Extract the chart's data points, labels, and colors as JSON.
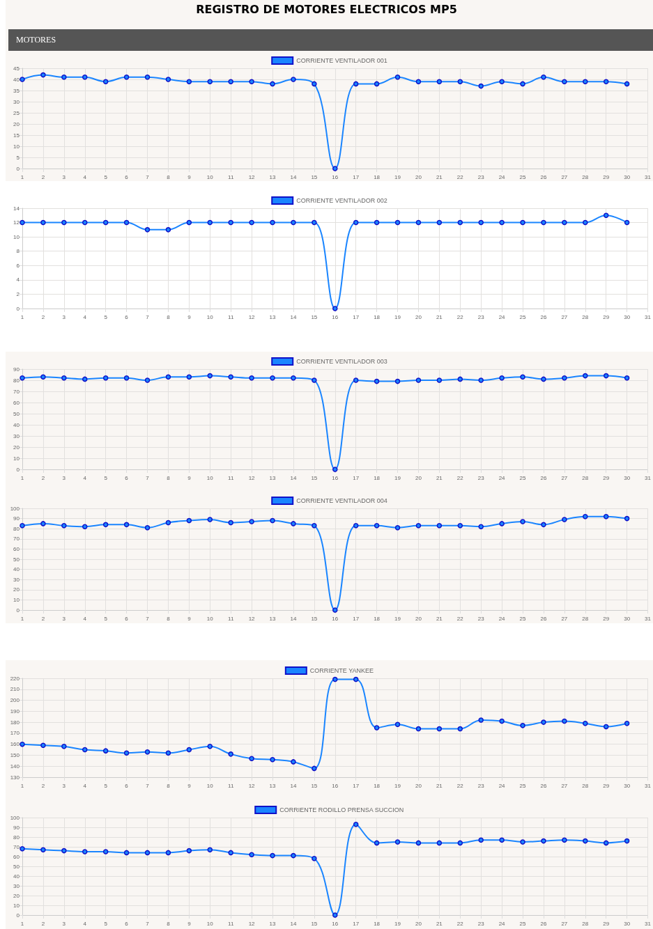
{
  "chart_data": [
    {
      "type": "line",
      "title": "REGISTRO DE MOTORES ELECTRICOS MP5",
      "subtitle": "MOTORES",
      "x": [
        1,
        2,
        3,
        4,
        5,
        6,
        7,
        8,
        9,
        10,
        11,
        12,
        13,
        14,
        15,
        16,
        17,
        18,
        19,
        20,
        21,
        22,
        23,
        24,
        25,
        26,
        27,
        28,
        29,
        30
      ],
      "xlim": [
        1,
        31
      ],
      "xticks": [
        1,
        2,
        3,
        4,
        5,
        6,
        7,
        8,
        9,
        10,
        11,
        12,
        13,
        14,
        15,
        16,
        17,
        18,
        19,
        20,
        21,
        22,
        23,
        24,
        25,
        26,
        27,
        28,
        29,
        30,
        31
      ],
      "ylim": [
        0,
        45
      ],
      "yticks": [
        0,
        5,
        10,
        15,
        20,
        25,
        30,
        35,
        40,
        45
      ],
      "grid": true,
      "legend": "top",
      "marker": "circle",
      "line_style": "solid",
      "series": [
        {
          "name": "CORRIENTE VENTILADOR 001",
          "color": "#1a85ff",
          "values": [
            40,
            42,
            41,
            41,
            39,
            41,
            41,
            40,
            39,
            39,
            39,
            39,
            38,
            40,
            38,
            0,
            38,
            38,
            41,
            39,
            39,
            39,
            37,
            39,
            38,
            41,
            39,
            39,
            39,
            38
          ]
        }
      ]
    },
    {
      "type": "line",
      "x": [
        1,
        2,
        3,
        4,
        5,
        6,
        7,
        8,
        9,
        10,
        11,
        12,
        13,
        14,
        15,
        16,
        17,
        18,
        19,
        20,
        21,
        22,
        23,
        24,
        25,
        26,
        27,
        28,
        29,
        30
      ],
      "xlim": [
        1,
        31
      ],
      "xticks": [
        1,
        2,
        3,
        4,
        5,
        6,
        7,
        8,
        9,
        10,
        11,
        12,
        13,
        14,
        15,
        16,
        17,
        18,
        19,
        20,
        21,
        22,
        23,
        24,
        25,
        26,
        27,
        28,
        29,
        30,
        31
      ],
      "ylim": [
        0,
        14
      ],
      "yticks": [
        0,
        2,
        4,
        6,
        8,
        10,
        12,
        14
      ],
      "grid": true,
      "legend": "top",
      "marker": "circle",
      "line_style": "solid",
      "series": [
        {
          "name": "CORRIENTE VENTILADOR 002",
          "color": "#1a85ff",
          "values": [
            12,
            12,
            12,
            12,
            12,
            12,
            11,
            11,
            12,
            12,
            12,
            12,
            12,
            12,
            12,
            0,
            12,
            12,
            12,
            12,
            12,
            12,
            12,
            12,
            12,
            12,
            12,
            12,
            13,
            12
          ]
        }
      ]
    },
    {
      "type": "line",
      "x": [
        1,
        2,
        3,
        4,
        5,
        6,
        7,
        8,
        9,
        10,
        11,
        12,
        13,
        14,
        15,
        16,
        17,
        18,
        19,
        20,
        21,
        22,
        23,
        24,
        25,
        26,
        27,
        28,
        29,
        30
      ],
      "xlim": [
        1,
        31
      ],
      "xticks": [
        1,
        2,
        3,
        4,
        5,
        6,
        7,
        8,
        9,
        10,
        11,
        12,
        13,
        14,
        15,
        16,
        17,
        18,
        19,
        20,
        21,
        22,
        23,
        24,
        25,
        26,
        27,
        28,
        29,
        30,
        31
      ],
      "ylim": [
        0,
        90
      ],
      "yticks": [
        0,
        10,
        20,
        30,
        40,
        50,
        60,
        70,
        80,
        90
      ],
      "grid": true,
      "legend": "top",
      "marker": "circle",
      "line_style": "solid",
      "series": [
        {
          "name": "CORRIENTE VENTILADOR 003",
          "color": "#1a85ff",
          "values": [
            82,
            83,
            82,
            81,
            82,
            82,
            80,
            83,
            83,
            84,
            83,
            82,
            82,
            82,
            80,
            0,
            80,
            79,
            79,
            80,
            80,
            81,
            80,
            82,
            83,
            81,
            82,
            84,
            84,
            82
          ]
        }
      ]
    },
    {
      "type": "line",
      "x": [
        1,
        2,
        3,
        4,
        5,
        6,
        7,
        8,
        9,
        10,
        11,
        12,
        13,
        14,
        15,
        16,
        17,
        18,
        19,
        20,
        21,
        22,
        23,
        24,
        25,
        26,
        27,
        28,
        29,
        30
      ],
      "xlim": [
        1,
        31
      ],
      "xticks": [
        1,
        2,
        3,
        4,
        5,
        6,
        7,
        8,
        9,
        10,
        11,
        12,
        13,
        14,
        15,
        16,
        17,
        18,
        19,
        20,
        21,
        22,
        23,
        24,
        25,
        26,
        27,
        28,
        29,
        30,
        31
      ],
      "ylim": [
        0,
        100
      ],
      "yticks": [
        0,
        10,
        20,
        30,
        40,
        50,
        60,
        70,
        80,
        90,
        100
      ],
      "grid": true,
      "legend": "top",
      "marker": "circle",
      "line_style": "solid",
      "series": [
        {
          "name": "CORRIENTE VENTILADOR 004",
          "color": "#1a85ff",
          "values": [
            83,
            85,
            83,
            82,
            84,
            84,
            81,
            86,
            88,
            89,
            86,
            87,
            88,
            85,
            83,
            0,
            83,
            83,
            81,
            83,
            83,
            83,
            82,
            85,
            87,
            84,
            89,
            92,
            92,
            90
          ]
        }
      ]
    },
    {
      "type": "line",
      "x": [
        1,
        2,
        3,
        4,
        5,
        6,
        7,
        8,
        9,
        10,
        11,
        12,
        13,
        14,
        15,
        16,
        17,
        18,
        19,
        20,
        21,
        22,
        23,
        24,
        25,
        26,
        27,
        28,
        29,
        30
      ],
      "xlim": [
        1,
        31
      ],
      "xticks": [
        1,
        2,
        3,
        4,
        5,
        6,
        7,
        8,
        9,
        10,
        11,
        12,
        13,
        14,
        15,
        16,
        17,
        18,
        19,
        20,
        21,
        22,
        23,
        24,
        25,
        26,
        27,
        28,
        29,
        30,
        31
      ],
      "ylim": [
        130,
        220
      ],
      "yticks": [
        130,
        140,
        150,
        160,
        170,
        180,
        190,
        200,
        210,
        220
      ],
      "grid": true,
      "legend": "top",
      "marker": "circle",
      "line_style": "solid",
      "series": [
        {
          "name": "CORRIENTE YANKEE",
          "color": "#1a85ff",
          "values": [
            160,
            159,
            158,
            155,
            154,
            152,
            153,
            152,
            155,
            158,
            151,
            147,
            146,
            144,
            138,
            219,
            219,
            175,
            178,
            174,
            174,
            174,
            182,
            181,
            177,
            180,
            181,
            179,
            176,
            179
          ]
        }
      ]
    },
    {
      "type": "line",
      "x": [
        1,
        2,
        3,
        4,
        5,
        6,
        7,
        8,
        9,
        10,
        11,
        12,
        13,
        14,
        15,
        16,
        17,
        18,
        19,
        20,
        21,
        22,
        23,
        24,
        25,
        26,
        27,
        28,
        29,
        30
      ],
      "xlim": [
        1,
        31
      ],
      "xticks": [
        1,
        2,
        3,
        4,
        5,
        6,
        7,
        8,
        9,
        10,
        11,
        12,
        13,
        14,
        15,
        16,
        17,
        18,
        19,
        20,
        21,
        22,
        23,
        24,
        25,
        26,
        27,
        28,
        29,
        30,
        31
      ],
      "ylim": [
        0,
        100
      ],
      "yticks": [
        0,
        10,
        20,
        30,
        40,
        50,
        60,
        70,
        80,
        90,
        100
      ],
      "grid": true,
      "legend": "top",
      "marker": "circle",
      "line_style": "solid",
      "series": [
        {
          "name": "CORRIENTE RODILLO PRENSA SUCCION",
          "color": "#1a85ff",
          "values": [
            68,
            67,
            66,
            65,
            65,
            64,
            64,
            64,
            66,
            67,
            64,
            62,
            61,
            61,
            58,
            0,
            93,
            74,
            75,
            74,
            74,
            74,
            77,
            77,
            75,
            76,
            77,
            76,
            74,
            76
          ]
        }
      ]
    }
  ]
}
